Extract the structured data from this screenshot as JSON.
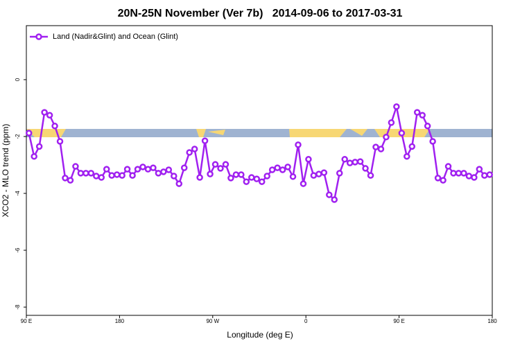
{
  "chart_data": {
    "type": "line",
    "title": "20N-25N November (Ver 7b)   2014-09-06 to 2017-03-31",
    "x_label": "Longitude (deg E)",
    "y_label": "XCO2 - MLO trend (ppm)",
    "xlim": [
      90,
      540
    ],
    "xticks": [
      {
        "value": 90,
        "label": "90 E"
      },
      180,
      {
        "value": 270,
        "label": "90 W"
      },
      {
        "value": 360,
        "label": "0"
      },
      {
        "value": 450,
        "label": "90 E"
      },
      {
        "value": 540,
        "label": "180"
      }
    ],
    "ylim": [
      -8.29,
      1.9
    ],
    "yticks": [
      0,
      -2,
      -4,
      -6,
      -8
    ],
    "legend": "top-left",
    "x": [
      92.5,
      97.5,
      102.5,
      107.5,
      112.5,
      117.5,
      122.5,
      127.5,
      132.5,
      137.5,
      142.5,
      147.5,
      152.5,
      157.5,
      162.5,
      167.5,
      172.5,
      177.5,
      182.5,
      187.5,
      192.5,
      197.5,
      202.5,
      207.5,
      212.5,
      217.5,
      222.5,
      227.5,
      232.5,
      237.5,
      242.5,
      247.5,
      252.5,
      257.5,
      262.5,
      267.5,
      272.5,
      277.5,
      282.5,
      287.5,
      292.5,
      297.5,
      302.5,
      307.5,
      312.5,
      317.5,
      322.5,
      327.5,
      332.5,
      337.5,
      342.5,
      347.5,
      352.5,
      357.5,
      362.5,
      367.5,
      372.5,
      377.5,
      382.5,
      387.5,
      392.5,
      397.5,
      402.5,
      407.5,
      412.5,
      417.5,
      422.5,
      427.5,
      432.5,
      437.5,
      442.5,
      447.5,
      452.5,
      457.5,
      462.5,
      467.5,
      472.5,
      477.5,
      482.5,
      487.5,
      492.5,
      497.5,
      502.5,
      507.5,
      512.5,
      517.5,
      522.5,
      527.5,
      532.5,
      537.5
    ],
    "series": [
      {
        "name": "Land (Nadir&Glint) and Ocean (Glint)",
        "color": "#a020f0",
        "values": [
          -1.88,
          -2.7,
          -2.35,
          -1.15,
          -1.25,
          -1.63,
          -2.17,
          -3.46,
          -3.54,
          -3.05,
          -3.29,
          -3.29,
          -3.29,
          -3.39,
          -3.44,
          -3.15,
          -3.37,
          -3.34,
          -3.37,
          -3.15,
          -3.37,
          -3.15,
          -3.07,
          -3.15,
          -3.1,
          -3.29,
          -3.24,
          -3.17,
          -3.39,
          -3.66,
          -3.1,
          -2.56,
          -2.44,
          -3.44,
          -2.15,
          -3.32,
          -2.98,
          -3.12,
          -2.98,
          -3.46,
          -3.34,
          -3.34,
          -3.59,
          -3.44,
          -3.49,
          -3.59,
          -3.39,
          -3.17,
          -3.1,
          -3.17,
          -3.07,
          -3.41,
          -2.29,
          -3.66,
          -2.8,
          -3.37,
          -3.32,
          -3.27,
          -4.05,
          -4.22,
          -3.29,
          -2.8,
          -2.93,
          -2.9,
          -2.88,
          -3.12,
          -3.37,
          -2.37,
          -2.44,
          -2.02,
          -1.51,
          -0.95,
          -1.88,
          -2.7,
          -2.35,
          -1.15,
          -1.25,
          -1.63,
          -2.17,
          -3.46,
          -3.54,
          -3.05,
          -3.29,
          -3.29,
          -3.29,
          -3.39,
          -3.44,
          -3.15,
          -3.37,
          -3.34
        ]
      }
    ]
  }
}
